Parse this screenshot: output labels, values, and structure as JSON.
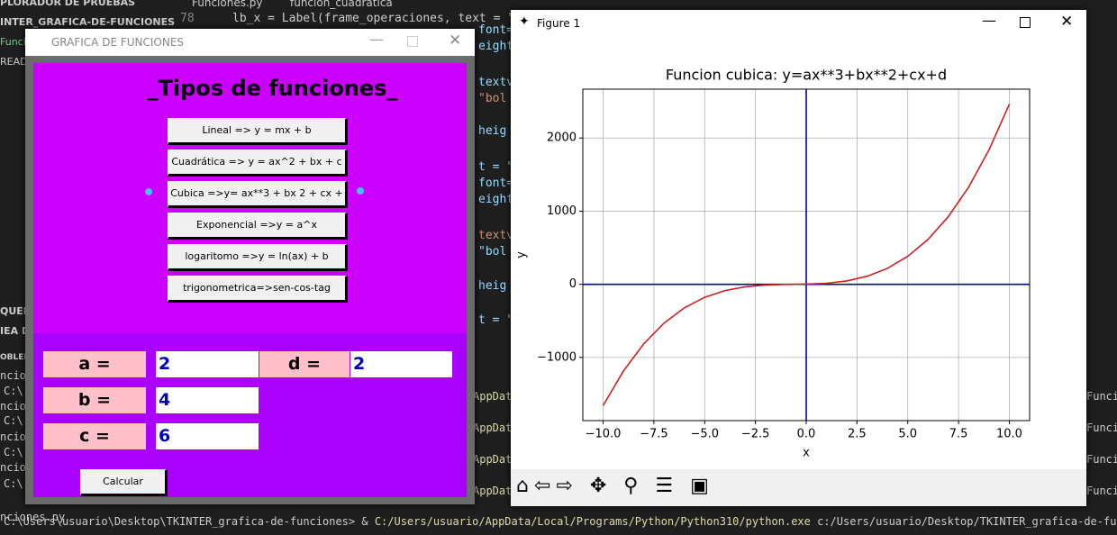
{
  "background": {
    "sidebar": [
      "PLORADOR DE PRUEBAS",
      "INTER_GRAFICA-DE-FUNCIONES",
      "Funci",
      "READ",
      "QUEM",
      "IEA D",
      "OBLEM"
    ],
    "tab": "Funciones.py",
    "breadcrumb": "funcion_cuadratica",
    "line_number": "78",
    "code": [
      "lb_x = Label(frame_operaciones, text = \"",
      "font=",
      "eight",
      "textv",
      "\"bol",
      "heig",
      "t = \"",
      "font=",
      "eight",
      "textv",
      "\"bol",
      "heig",
      "t = \""
    ],
    "terminal_left": [
      "ncio",
      "C:\\",
      "ncion",
      "C:\\",
      "ncion",
      "C:\\",
      "ncion",
      "C:\\",
      "nciones.py"
    ],
    "terminal_appdata": [
      "AppData",
      "AppData",
      "AppData",
      "AppData"
    ],
    "terminal_right": [
      "Funcione",
      "Funcione",
      "Funcione",
      "Funcione"
    ],
    "terminal_prompt": "C:\\Users\\usuario\\Desktop\\TKINTER_grafica-de-funciones> &",
    "terminal_exe": "C:/Users/usuario/AppData/Local/Programs/Python/Python310/python.exe",
    "terminal_arg": "c:/Users/usuario/Desktop/TKINTER_grafica-de-funcione"
  },
  "tk_window": {
    "title": "GRAFICA DE FUNCIONES",
    "heading": "_Tipos de funciones_",
    "buttons": [
      "Lineal => y = mx + b",
      "Cuadrática => y = ax^2 + bx + c",
      "Cubica =>y= ax**3 + bx 2 + cx + d",
      "Exponencial =>y = a^x",
      "logaritomo =>y = ln(ax) + b",
      "trigonometrica=>sen-cos-tag"
    ],
    "params": [
      {
        "label": "a =",
        "value": "2"
      },
      {
        "label": "b =",
        "value": "4"
      },
      {
        "label": "c =",
        "value": "6"
      },
      {
        "label": "d =",
        "value": "2"
      }
    ],
    "calc_button": "Calcular"
  },
  "figure_window": {
    "title": "Figure 1"
  },
  "chart_data": {
    "type": "line",
    "title": "Funcion cubica: y=ax**3+bx**2+cx+d",
    "x_label": "x",
    "y_label": "y",
    "x": [
      -10,
      -9,
      -8,
      -7,
      -6,
      -5,
      -4,
      -3,
      -2,
      -1,
      0,
      1,
      2,
      3,
      4,
      5,
      6,
      7,
      8,
      9,
      10
    ],
    "series": [
      {
        "color": "#cc2020",
        "values": [
          -1658,
          -1186,
          -814,
          -530,
          -322,
          -178,
          -86,
          -34,
          -10,
          -2,
          2,
          14,
          46,
          110,
          218,
          382,
          614,
          926,
          1330,
          1838,
          2462
        ]
      }
    ],
    "xlim": [
      -11,
      11
    ],
    "ylim": [
      -1864,
      2668
    ],
    "xticks": [
      {
        "value": -10,
        "label": "−10.0"
      },
      {
        "value": -7.5,
        "label": "−7.5"
      },
      {
        "value": -5,
        "label": "−5.0"
      },
      {
        "value": -2.5,
        "label": "−2.5"
      },
      {
        "value": 0,
        "label": "0.0"
      },
      {
        "value": 2.5,
        "label": "2.5"
      },
      {
        "value": 5,
        "label": "5.0"
      },
      {
        "value": 7.5,
        "label": "7.5"
      },
      {
        "value": 10,
        "label": "10.0"
      }
    ],
    "yticks": [
      {
        "value": -1000,
        "label": "−1000"
      },
      0,
      1000,
      2000
    ],
    "grid": true,
    "reference_lines": [
      {
        "axis": "y",
        "value": 0,
        "color": "#0000b0"
      },
      {
        "axis": "x",
        "value": 0,
        "color": "#0000b0"
      }
    ]
  }
}
